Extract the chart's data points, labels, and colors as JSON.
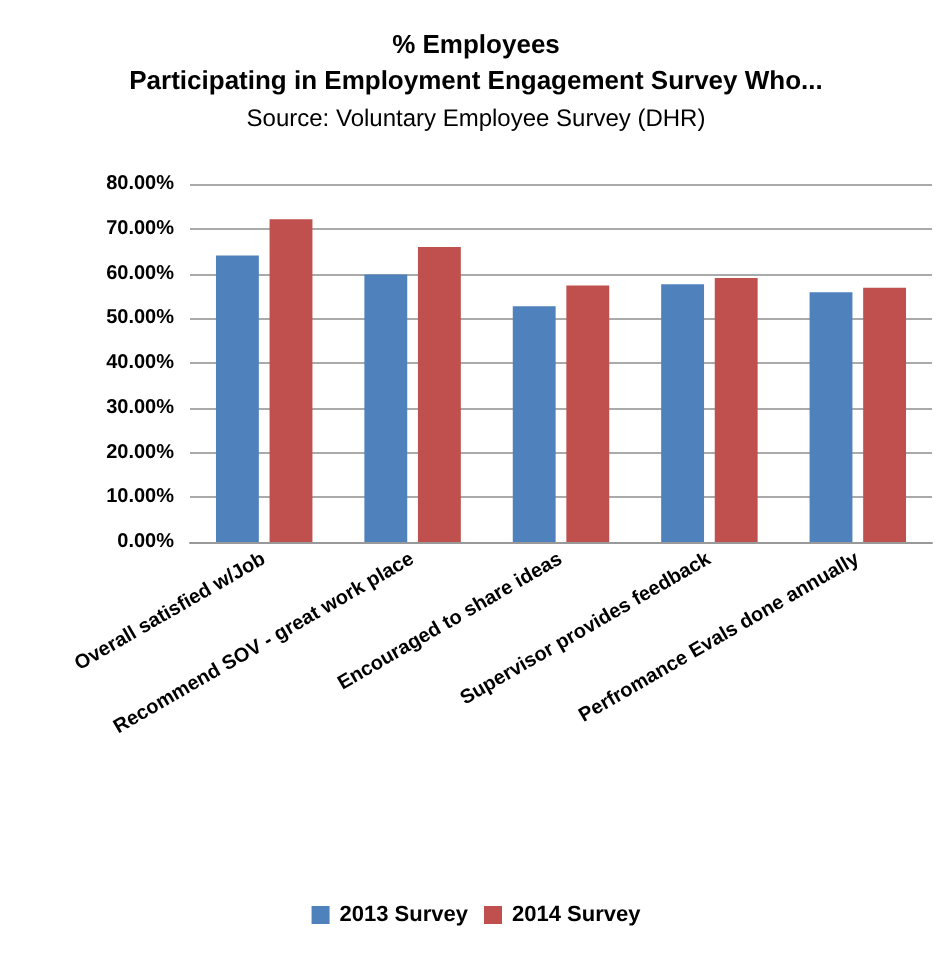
{
  "chart_data": {
    "type": "bar",
    "title": "% Employees\nParticipating in Employment Engagement Survey Who...",
    "subtitle": "Source: Voluntary Employee Survey (DHR)",
    "categories": [
      "Overall satisfied w/Job",
      "Recommend SOV - great work place",
      "Encouraged to share ideas",
      "Supervisor provides feedback",
      "Perfromance Evals done annually"
    ],
    "series": [
      {
        "name": "2013 Survey",
        "color": "#4f81bd",
        "values": [
          64.0,
          59.8,
          52.7,
          57.6,
          55.8
        ]
      },
      {
        "name": "2014 Survey",
        "color": "#c0504d",
        "values": [
          72.1,
          65.9,
          57.3,
          59.0,
          56.8
        ]
      }
    ],
    "ylim": [
      0,
      80
    ],
    "yticks": [
      {
        "value": 0,
        "label": "0.00%"
      },
      {
        "value": 10,
        "label": "10.00%"
      },
      {
        "value": 20,
        "label": "20.00%"
      },
      {
        "value": 30,
        "label": "30.00%"
      },
      {
        "value": 40,
        "label": "40.00%"
      },
      {
        "value": 50,
        "label": "50.00%"
      },
      {
        "value": 60,
        "label": "60.00%"
      },
      {
        "value": 70,
        "label": "70.00%"
      },
      {
        "value": 80,
        "label": "80.00%"
      }
    ],
    "grid": "y",
    "legend": "bottom"
  }
}
